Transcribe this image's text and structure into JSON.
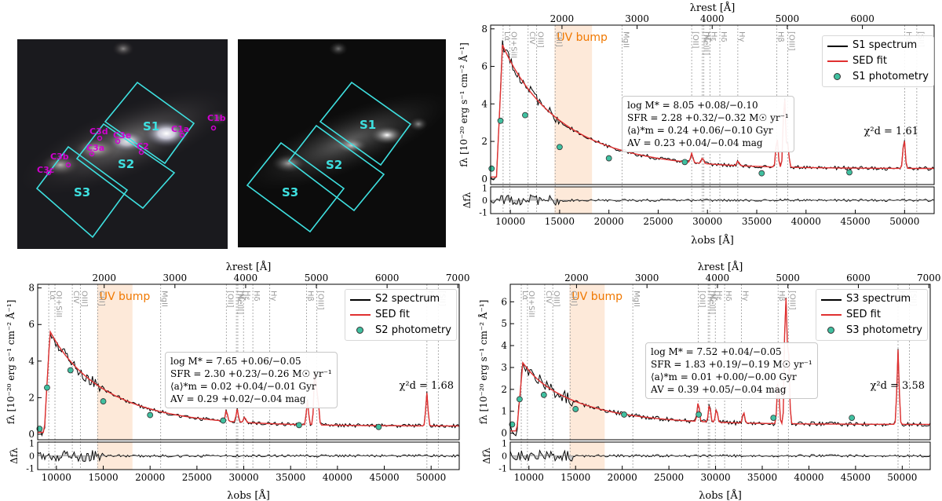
{
  "images": {
    "labels_rgb": [
      "S1",
      "S2",
      "S3"
    ],
    "clumps_rgb": [
      "C1b",
      "C1a",
      "C2",
      "C3e",
      "C3d",
      "C3a",
      "C3b",
      "C3c"
    ],
    "labels_gray": [
      "S1",
      "S2",
      "S3"
    ],
    "colors": {
      "box": "#3ee0e0",
      "clump": "#d000d0",
      "label": "#3ee0e0"
    }
  },
  "chart_data": [
    {
      "type": "line",
      "id": "S1",
      "xlabel": "λobs [Å]",
      "x2label": "λrest [Å]",
      "ylabel": "fλ [10⁻²⁰ erg s⁻¹ cm⁻² Å⁻¹]",
      "resid_ylabel": "Δfλ",
      "xlim": [
        8000,
        53000
      ],
      "ylim": [
        -0.3,
        8.2
      ],
      "xticks": [
        10000,
        15000,
        20000,
        25000,
        30000,
        35000,
        40000,
        45000,
        50000
      ],
      "yticks": [
        0,
        2,
        4,
        6,
        8
      ],
      "x2ticks": [
        2000,
        3000,
        4000,
        5000,
        6000,
        7000
      ],
      "rest_factor": 7.62,
      "uv_bump_label": "UV bump",
      "uv_bump_rest": [
        1900,
        2400
      ],
      "lines": [
        {
          "name": "Lα",
          "rest": 1216
        },
        {
          "name": "OI+SiII",
          "rest": 1304
        },
        {
          "name": "CIV",
          "rest": 1549
        },
        {
          "name": "OIII]",
          "rest": 1663
        },
        {
          "name": "CIII]",
          "rest": 1909
        },
        {
          "name": "MgII",
          "rest": 2799
        },
        {
          "name": "[OII]",
          "rest": 3727
        },
        {
          "name": "[NeIII]",
          "rest": 3869
        },
        {
          "name": "Hζ",
          "rest": 3889
        },
        {
          "name": "Hε",
          "rest": 3970
        },
        {
          "name": "Hδ",
          "rest": 4102
        },
        {
          "name": "Hγ",
          "rest": 4341
        },
        {
          "name": "Hβ",
          "rest": 4861
        },
        {
          "name": "[OIII]",
          "rest": 5007
        },
        {
          "name": "Hα",
          "rest": 6563
        },
        {
          "name": "[SII]",
          "rest": 6724
        }
      ],
      "emission": [
        [
          28400,
          0.5
        ],
        [
          29500,
          0.3
        ],
        [
          33100,
          0.25
        ],
        [
          37050,
          1.6
        ],
        [
          37800,
          3.9
        ],
        [
          38150,
          1.2
        ],
        [
          49950,
          1.6
        ]
      ],
      "continuum": {
        "peak": 6.8,
        "floor": 0.55,
        "break": 9200
      },
      "photometry_x": [
        8100,
        9000,
        11500,
        15000,
        20000,
        27700,
        35500,
        44400
      ],
      "photometry_y": [
        0.55,
        3.1,
        3.4,
        1.7,
        1.1,
        0.9,
        0.3,
        0.35
      ],
      "series": [
        {
          "name": "S1 spectrum",
          "color": "#000000"
        },
        {
          "name": "SED fit",
          "color": "#e03030"
        },
        {
          "name": "S1 photometry",
          "color": "#40c0a0"
        }
      ],
      "stats": {
        "logM": "log M* = 8.05 +0.08/−0.10",
        "sfr": "SFR = 2.28 +0.32/−0.32 M☉ yr⁻¹",
        "age": "⟨a⟩*m = 0.24 +0.06/−0.10 Gyr",
        "av": "AV = 0.23 +0.04/−0.04 mag"
      },
      "chi2": "χ²d = 1.61"
    },
    {
      "type": "line",
      "id": "S2",
      "xlabel": "λobs [Å]",
      "x2label": "λrest [Å]",
      "ylabel": "fλ [10⁻²⁰ erg s⁻¹ cm⁻² Å⁻¹]",
      "resid_ylabel": "Δfλ",
      "xlim": [
        8000,
        53000
      ],
      "ylim": [
        -0.3,
        8.2
      ],
      "xticks": [
        10000,
        15000,
        20000,
        25000,
        30000,
        35000,
        40000,
        45000,
        50000
      ],
      "yticks": [
        0,
        2,
        4,
        6,
        8
      ],
      "x2ticks": [
        2000,
        3000,
        4000,
        5000,
        6000,
        7000
      ],
      "rest_factor": 7.55,
      "uv_bump_label": "UV bump",
      "uv_bump_rest": [
        1900,
        2400
      ],
      "lines": [
        {
          "name": "Lα",
          "rest": 1216
        },
        {
          "name": "OI+SiII",
          "rest": 1304
        },
        {
          "name": "CIV",
          "rest": 1549
        },
        {
          "name": "OIII]",
          "rest": 1663
        },
        {
          "name": "CIII]",
          "rest": 1909
        },
        {
          "name": "MgII",
          "rest": 2799
        },
        {
          "name": "[OII]",
          "rest": 3727
        },
        {
          "name": "[NeIII]",
          "rest": 3869
        },
        {
          "name": "Hζ",
          "rest": 3889
        },
        {
          "name": "Hε",
          "rest": 3970
        },
        {
          "name": "Hδ",
          "rest": 4102
        },
        {
          "name": "Hγ",
          "rest": 4341
        },
        {
          "name": "Hβ",
          "rest": 4861
        },
        {
          "name": "[OIII]",
          "rest": 5007
        },
        {
          "name": "Hα",
          "rest": 6563
        },
        {
          "name": "[SII]",
          "rest": 6724
        }
      ],
      "emission": [
        [
          28150,
          0.6
        ],
        [
          29300,
          0.7
        ],
        [
          30100,
          0.3
        ],
        [
          36800,
          1.3
        ],
        [
          37600,
          3.0
        ],
        [
          37900,
          1.6
        ],
        [
          49550,
          1.8
        ]
      ],
      "continuum": {
        "peak": 5.3,
        "floor": 0.45,
        "break": 9300
      },
      "photometry_x": [
        8200,
        9000,
        11500,
        15000,
        20000,
        27800,
        35900,
        44400
      ],
      "photometry_y": [
        0.3,
        2.55,
        3.5,
        1.8,
        1.05,
        0.75,
        0.5,
        0.4
      ],
      "series": [
        {
          "name": "S2 spectrum",
          "color": "#000000"
        },
        {
          "name": "SED fit",
          "color": "#e03030"
        },
        {
          "name": "S2 photometry",
          "color": "#40c0a0"
        }
      ],
      "stats": {
        "logM": "log M* = 7.65 +0.06/−0.05",
        "sfr": "SFR = 2.30 +0.23/−0.26 M☉ yr⁻¹",
        "age": "⟨a⟩*m = 0.02 +0.04/−0.01 Gyr",
        "av": "AV = 0.29 +0.02/−0.04 mag"
      },
      "chi2": "χ²d = 1.68"
    },
    {
      "type": "line",
      "id": "S3",
      "xlabel": "λobs [Å]",
      "x2label": "λrest [Å]",
      "ylabel": "fλ [10⁻²⁰ erg s⁻¹ cm⁻² Å⁻¹]",
      "resid_ylabel": "Δfλ",
      "xlim": [
        8000,
        53000
      ],
      "ylim": [
        -0.3,
        6.8
      ],
      "xticks": [
        10000,
        15000,
        20000,
        25000,
        30000,
        35000,
        40000,
        45000,
        50000
      ],
      "yticks": [
        0,
        1,
        2,
        3,
        4,
        5,
        6
      ],
      "x2ticks": [
        2000,
        3000,
        4000,
        5000,
        6000,
        7000
      ],
      "rest_factor": 7.55,
      "uv_bump_label": "UV bump",
      "uv_bump_rest": [
        1900,
        2400
      ],
      "lines": [
        {
          "name": "Lα",
          "rest": 1216
        },
        {
          "name": "OI+SiII",
          "rest": 1304
        },
        {
          "name": "CIV",
          "rest": 1549
        },
        {
          "name": "OIII]",
          "rest": 1663
        },
        {
          "name": "CIII]",
          "rest": 1909
        },
        {
          "name": "MgII",
          "rest": 2799
        },
        {
          "name": "[OII]",
          "rest": 3727
        },
        {
          "name": "[NeIII]",
          "rest": 3869
        },
        {
          "name": "Hζ",
          "rest": 3889
        },
        {
          "name": "Hε",
          "rest": 3970
        },
        {
          "name": "Hδ",
          "rest": 4102
        },
        {
          "name": "Hγ",
          "rest": 4341
        },
        {
          "name": "Hβ",
          "rest": 4861
        },
        {
          "name": "[OIII]",
          "rest": 5007
        },
        {
          "name": "Hα",
          "rest": 6563
        },
        {
          "name": "[SII]",
          "rest": 6724
        }
      ],
      "emission": [
        [
          28150,
          0.9
        ],
        [
          29350,
          0.8
        ],
        [
          30100,
          0.6
        ],
        [
          33000,
          0.5
        ],
        [
          36700,
          2.0
        ],
        [
          37500,
          6.0
        ],
        [
          37800,
          3.4
        ],
        [
          49550,
          3.4
        ]
      ],
      "continuum": {
        "peak": 2.9,
        "floor": 0.4,
        "break": 9300
      },
      "photometry_x": [
        8200,
        9000,
        11600,
        15000,
        20200,
        28200,
        36200,
        44600
      ],
      "photometry_y": [
        0.4,
        1.55,
        1.75,
        1.1,
        0.85,
        0.85,
        0.7,
        0.7
      ],
      "series": [
        {
          "name": "S3 spectrum",
          "color": "#000000"
        },
        {
          "name": "SED fit",
          "color": "#e03030"
        },
        {
          "name": "S3 photometry",
          "color": "#40c0a0"
        }
      ],
      "stats": {
        "logM": "log M* = 7.52 +0.04/−0.05",
        "sfr": "SFR = 1.83 +0.19/−0.19 M☉ yr⁻¹",
        "age": "⟨a⟩*m = 0.01 +0.00/−0.00 Gyr",
        "av": "AV = 0.39 +0.05/−0.04 mag"
      },
      "chi2": "χ²d = 3.58"
    }
  ]
}
